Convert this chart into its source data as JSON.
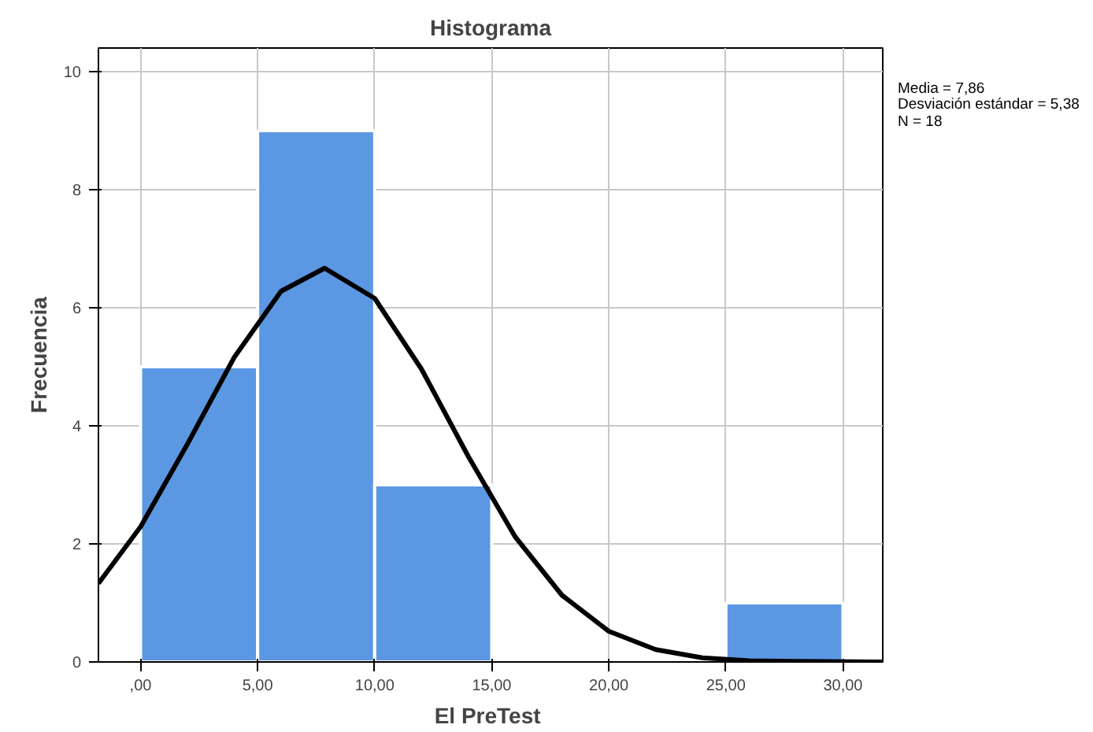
{
  "chart_data": {
    "type": "histogram",
    "title": "Histograma",
    "xlabel": "El  PreTest",
    "ylabel": "Frecuencia",
    "bins": [
      0,
      5,
      10,
      15,
      20,
      25,
      30
    ],
    "values": [
      5,
      9,
      3,
      0,
      0,
      1
    ],
    "color": "#5b97e3",
    "xlim": [
      -1.8,
      31.7
    ],
    "ylim": [
      0,
      10.4
    ],
    "xticks": [
      {
        "value": 0,
        "label": ",00"
      },
      {
        "value": 5,
        "label": "5,00"
      },
      {
        "value": 10,
        "label": "10,00"
      },
      {
        "value": 15,
        "label": "15,00"
      },
      {
        "value": 20,
        "label": "20,00"
      },
      {
        "value": 25,
        "label": "25,00"
      },
      {
        "value": 30,
        "label": "30,00"
      }
    ],
    "yticks": [
      0,
      2,
      4,
      6,
      8,
      10
    ],
    "grid": true,
    "series": [
      {
        "type": "line",
        "color": "#000000",
        "x": [
          -1.8,
          0,
          2,
          4,
          6,
          7.86,
          10,
          12,
          14,
          16,
          18,
          20,
          22,
          24,
          26,
          28,
          31.7
        ],
        "values": [
          1.33,
          2.29,
          3.69,
          5.16,
          6.28,
          6.67,
          6.16,
          4.96,
          3.48,
          2.12,
          1.13,
          0.52,
          0.21,
          0.07,
          0.02,
          0.01,
          0
        ]
      }
    ],
    "annotations": [
      "Media = 7,86",
      "Desviación estándar = 5,38",
      "N = 18"
    ]
  }
}
